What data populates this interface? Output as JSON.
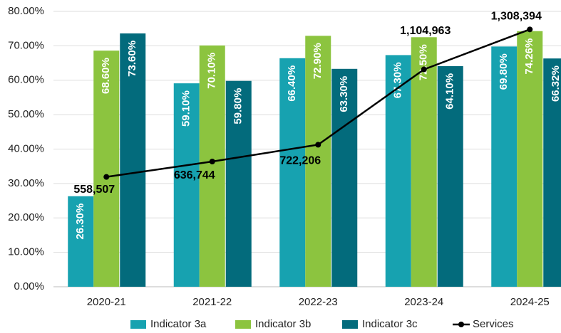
{
  "chart_data": {
    "type": "bar",
    "categories": [
      "2020-21",
      "2021-22",
      "2022-23",
      "2023-24",
      "2024-25"
    ],
    "series": [
      {
        "name": "Indicator 3a",
        "color": "#17a2b0",
        "values": [
          26.3,
          59.1,
          66.4,
          67.3,
          69.8
        ],
        "value_labels": [
          "26.30%",
          "59.10%",
          "66.40%",
          "67.30%",
          "69.80%"
        ]
      },
      {
        "name": "Indicator 3b",
        "color": "#8cc43f",
        "values": [
          68.6,
          70.1,
          72.9,
          72.5,
          74.26
        ],
        "value_labels": [
          "68.60%",
          "70.10%",
          "72.90%",
          "72.50%",
          "74.26%"
        ]
      },
      {
        "name": "Indicator 3c",
        "color": "#036b7c",
        "values": [
          73.6,
          59.8,
          63.3,
          64.1,
          66.32
        ],
        "value_labels": [
          "73.60%",
          "59.80%",
          "63.30%",
          "64.10%",
          "66.32%"
        ]
      },
      {
        "name": "Services",
        "type": "line",
        "axis": "y2",
        "color": "#000000",
        "values": [
          558507,
          636744,
          722206,
          1104963,
          1308394
        ],
        "value_labels": [
          "558,507",
          "636,744",
          "722,206",
          "1,104,963",
          "1,308,394"
        ]
      }
    ],
    "ylim": [
      0,
      80
    ],
    "yticks": [
      {
        "value": 0,
        "label": "0.00%"
      },
      {
        "value": 10,
        "label": "10.00%"
      },
      {
        "value": 20,
        "label": "20.00%"
      },
      {
        "value": 30,
        "label": "30.00%"
      },
      {
        "value": 40,
        "label": "40.00%"
      },
      {
        "value": 50,
        "label": "50.00%"
      },
      {
        "value": 60,
        "label": "60.00%"
      },
      {
        "value": 70,
        "label": "70.00%"
      },
      {
        "value": 80,
        "label": "80.00%"
      }
    ],
    "y2lim": [
      0,
      1400000
    ],
    "grid": true,
    "legend": "bottom"
  }
}
